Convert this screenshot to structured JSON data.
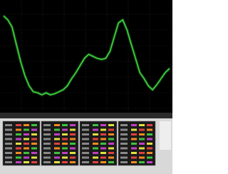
{
  "chart_data": {
    "type": "line",
    "color": "#3ecf3e",
    "values": [
      90,
      86,
      79,
      62,
      45,
      31,
      21,
      15,
      14,
      12,
      14,
      12,
      13,
      15,
      17,
      21,
      28,
      34,
      41,
      48,
      52,
      50,
      48,
      47,
      48,
      55,
      69,
      83,
      86,
      76,
      62,
      48,
      34,
      28,
      21,
      17,
      22,
      28,
      34,
      38
    ],
    "ylim": [
      0,
      100
    ],
    "grid": true
  }
}
